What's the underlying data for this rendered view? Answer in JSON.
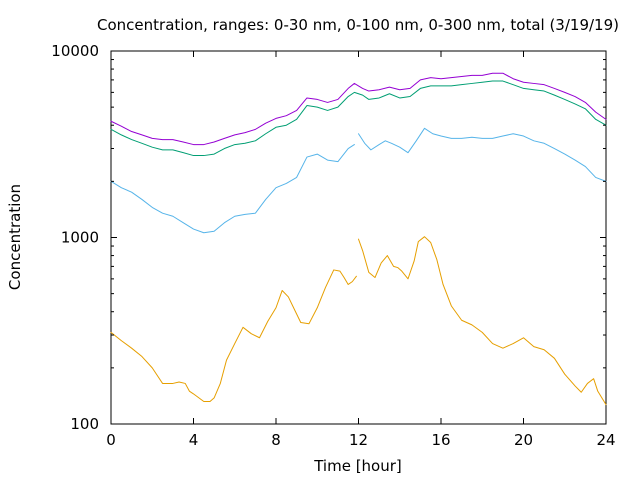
{
  "chart_data": {
    "type": "line",
    "title": "Concentration, ranges: 0-30 nm, 0-100 nm, 0-300 nm, total (3/19/19)",
    "xlabel": "Time [hour]",
    "ylabel": "Concentration",
    "xlim": [
      0,
      24
    ],
    "ylim": [
      100,
      10000
    ],
    "yscale": "log",
    "grid": false,
    "legend": "none",
    "x_ticks": [
      0,
      4,
      8,
      12,
      16,
      20,
      24
    ],
    "x_tick_labels": [
      "0",
      "4",
      "8",
      "12",
      "16",
      "20",
      "24"
    ],
    "y_ticks": [
      100,
      1000,
      10000
    ],
    "y_tick_labels": [
      "100",
      "1000",
      "10000"
    ],
    "series": [
      {
        "color": "#e69f00",
        "segments": [
          [
            [
              0,
              310
            ],
            [
              0.5,
              280
            ],
            [
              1,
              255
            ],
            [
              1.5,
              230
            ],
            [
              2,
              200
            ],
            [
              2.5,
              165
            ],
            [
              3,
              165
            ],
            [
              3.3,
              168
            ],
            [
              3.6,
              165
            ],
            [
              3.8,
              150
            ],
            [
              4,
              145
            ],
            [
              4.5,
              132
            ],
            [
              4.8,
              132
            ],
            [
              5,
              138
            ],
            [
              5.3,
              165
            ],
            [
              5.6,
              220
            ],
            [
              6,
              270
            ],
            [
              6.4,
              330
            ],
            [
              6.8,
              305
            ],
            [
              7.2,
              290
            ],
            [
              7.6,
              355
            ],
            [
              8,
              420
            ],
            [
              8.3,
              520
            ],
            [
              8.6,
              480
            ],
            [
              8.9,
              410
            ],
            [
              9.2,
              350
            ],
            [
              9.6,
              345
            ],
            [
              10,
              420
            ],
            [
              10.4,
              540
            ],
            [
              10.8,
              670
            ],
            [
              11.1,
              660
            ],
            [
              11.3,
              610
            ],
            [
              11.5,
              560
            ],
            [
              11.7,
              580
            ],
            [
              11.9,
              620
            ]
          ],
          [
            [
              12.0,
              980
            ],
            [
              12.2,
              850
            ],
            [
              12.5,
              650
            ],
            [
              12.8,
              610
            ],
            [
              13.1,
              730
            ],
            [
              13.4,
              800
            ],
            [
              13.7,
              700
            ],
            [
              13.9,
              690
            ],
            [
              14.1,
              660
            ],
            [
              14.4,
              600
            ],
            [
              14.7,
              750
            ],
            [
              14.9,
              950
            ],
            [
              15.2,
              1010
            ],
            [
              15.5,
              940
            ],
            [
              15.8,
              760
            ],
            [
              16.1,
              560
            ],
            [
              16.5,
              430
            ],
            [
              17,
              360
            ],
            [
              17.5,
              340
            ],
            [
              18,
              310
            ],
            [
              18.5,
              270
            ],
            [
              19,
              255
            ],
            [
              19.5,
              270
            ],
            [
              20,
              290
            ],
            [
              20.5,
              260
            ],
            [
              21,
              250
            ],
            [
              21.5,
              225
            ],
            [
              22,
              185
            ],
            [
              22.5,
              160
            ],
            [
              22.8,
              148
            ],
            [
              23.1,
              165
            ],
            [
              23.4,
              175
            ],
            [
              23.6,
              150
            ],
            [
              24,
              127
            ]
          ]
        ]
      },
      {
        "color": "#56b4e9",
        "segments": [
          [
            [
              0,
              2000
            ],
            [
              0.5,
              1850
            ],
            [
              1,
              1750
            ],
            [
              1.5,
              1600
            ],
            [
              2,
              1450
            ],
            [
              2.5,
              1350
            ],
            [
              3,
              1300
            ],
            [
              3.5,
              1200
            ],
            [
              4,
              1110
            ],
            [
              4.5,
              1060
            ],
            [
              5,
              1080
            ],
            [
              5.5,
              1200
            ],
            [
              6,
              1300
            ],
            [
              6.5,
              1330
            ],
            [
              7,
              1350
            ],
            [
              7.5,
              1600
            ],
            [
              8,
              1850
            ],
            [
              8.5,
              1950
            ],
            [
              9,
              2100
            ],
            [
              9.5,
              2700
            ],
            [
              10,
              2800
            ],
            [
              10.5,
              2600
            ],
            [
              11,
              2550
            ],
            [
              11.5,
              3000
            ],
            [
              11.8,
              3150
            ]
          ],
          [
            [
              12.0,
              3600
            ],
            [
              12.3,
              3200
            ],
            [
              12.6,
              2950
            ],
            [
              13,
              3150
            ],
            [
              13.3,
              3300
            ],
            [
              13.6,
              3200
            ],
            [
              14,
              3050
            ],
            [
              14.4,
              2850
            ],
            [
              14.8,
              3300
            ],
            [
              15.2,
              3850
            ],
            [
              15.6,
              3600
            ],
            [
              16,
              3500
            ],
            [
              16.5,
              3400
            ],
            [
              17,
              3400
            ],
            [
              17.5,
              3450
            ],
            [
              18,
              3400
            ],
            [
              18.5,
              3400
            ],
            [
              19,
              3500
            ],
            [
              19.5,
              3600
            ],
            [
              20,
              3500
            ],
            [
              20.5,
              3300
            ],
            [
              21,
              3200
            ],
            [
              21.5,
              3000
            ],
            [
              22,
              2800
            ],
            [
              22.5,
              2600
            ],
            [
              23,
              2400
            ],
            [
              23.5,
              2100
            ],
            [
              24,
              2000
            ]
          ]
        ]
      },
      {
        "color": "#009e73",
        "segments": [
          [
            [
              0,
              3800
            ],
            [
              0.5,
              3550
            ],
            [
              1,
              3350
            ],
            [
              1.5,
              3200
            ],
            [
              2,
              3050
            ],
            [
              2.5,
              2950
            ],
            [
              3,
              2950
            ],
            [
              3.5,
              2850
            ],
            [
              4,
              2750
            ],
            [
              4.5,
              2750
            ],
            [
              5,
              2800
            ],
            [
              5.5,
              3000
            ],
            [
              6,
              3150
            ],
            [
              6.5,
              3200
            ],
            [
              7,
              3300
            ],
            [
              7.5,
              3600
            ],
            [
              8,
              3900
            ],
            [
              8.5,
              4000
            ],
            [
              9,
              4300
            ],
            [
              9.5,
              5100
            ],
            [
              10,
              5000
            ],
            [
              10.5,
              4800
            ],
            [
              11,
              5000
            ],
            [
              11.5,
              5700
            ],
            [
              11.8,
              6000
            ],
            [
              12.2,
              5800
            ],
            [
              12.5,
              5500
            ],
            [
              13,
              5600
            ],
            [
              13.5,
              5900
            ],
            [
              14,
              5600
            ],
            [
              14.5,
              5700
            ],
            [
              15,
              6300
            ],
            [
              15.5,
              6500
            ],
            [
              16,
              6500
            ],
            [
              16.5,
              6500
            ],
            [
              17,
              6600
            ],
            [
              17.5,
              6700
            ],
            [
              18,
              6800
            ],
            [
              18.5,
              6900
            ],
            [
              19,
              6900
            ],
            [
              19.5,
              6600
            ],
            [
              20,
              6300
            ],
            [
              20.5,
              6200
            ],
            [
              21,
              6100
            ],
            [
              21.5,
              5800
            ],
            [
              22,
              5500
            ],
            [
              22.5,
              5200
            ],
            [
              23,
              4900
            ],
            [
              23.5,
              4300
            ],
            [
              24,
              4000
            ]
          ]
        ]
      },
      {
        "color": "#9400d3",
        "segments": [
          [
            [
              0,
              4200
            ],
            [
              0.5,
              3950
            ],
            [
              1,
              3700
            ],
            [
              1.5,
              3550
            ],
            [
              2,
              3400
            ],
            [
              2.5,
              3350
            ],
            [
              3,
              3350
            ],
            [
              3.5,
              3250
            ],
            [
              4,
              3150
            ],
            [
              4.5,
              3150
            ],
            [
              5,
              3250
            ],
            [
              5.5,
              3400
            ],
            [
              6,
              3550
            ],
            [
              6.5,
              3650
            ],
            [
              7,
              3800
            ],
            [
              7.5,
              4100
            ],
            [
              8,
              4350
            ],
            [
              8.5,
              4500
            ],
            [
              9,
              4800
            ],
            [
              9.5,
              5600
            ],
            [
              10,
              5500
            ],
            [
              10.5,
              5300
            ],
            [
              11,
              5500
            ],
            [
              11.5,
              6300
            ],
            [
              11.8,
              6700
            ],
            [
              12.2,
              6300
            ],
            [
              12.5,
              6100
            ],
            [
              13,
              6200
            ],
            [
              13.5,
              6400
            ],
            [
              14,
              6200
            ],
            [
              14.5,
              6300
            ],
            [
              15,
              7000
            ],
            [
              15.5,
              7200
            ],
            [
              16,
              7100
            ],
            [
              16.5,
              7200
            ],
            [
              17,
              7300
            ],
            [
              17.5,
              7400
            ],
            [
              18,
              7400
            ],
            [
              18.5,
              7600
            ],
            [
              19,
              7600
            ],
            [
              19.5,
              7100
            ],
            [
              20,
              6800
            ],
            [
              20.5,
              6700
            ],
            [
              21,
              6600
            ],
            [
              21.5,
              6300
            ],
            [
              22,
              6000
            ],
            [
              22.5,
              5700
            ],
            [
              23,
              5300
            ],
            [
              23.5,
              4700
            ],
            [
              24,
              4300
            ]
          ]
        ]
      }
    ]
  }
}
